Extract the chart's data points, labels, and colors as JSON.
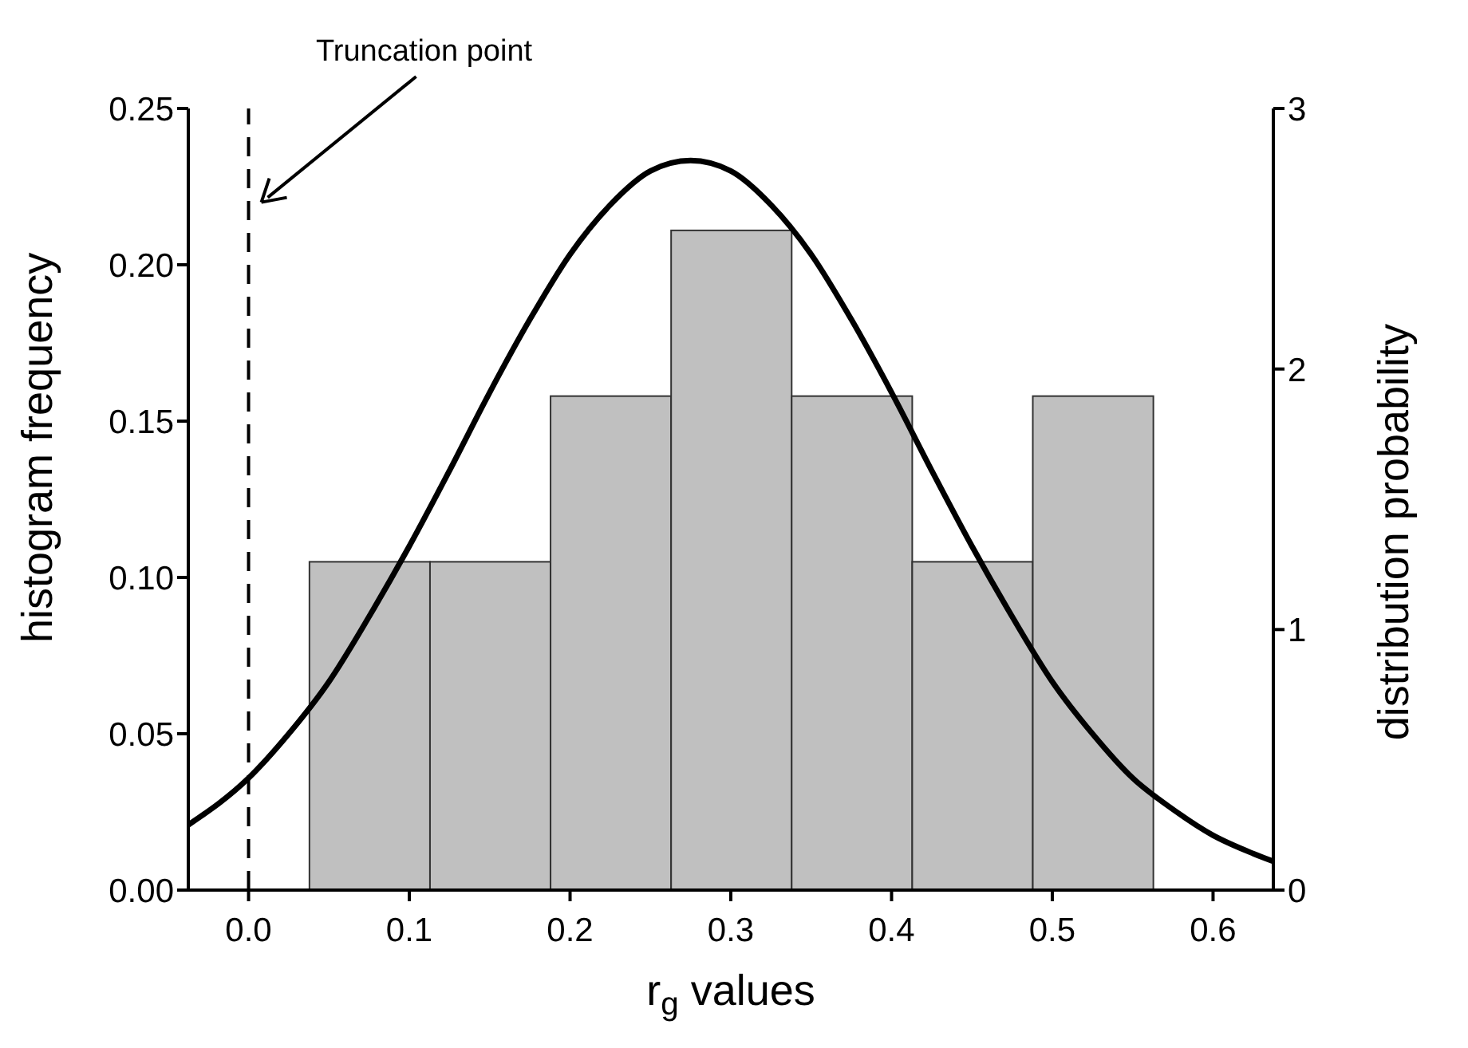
{
  "chart_data": {
    "type": "histogram",
    "xlabel": "r$_{g}$ values",
    "ylabel": "histogram frequency",
    "y2label": "distribution probability",
    "series": [
      {
        "color": "#c0c0c0",
        "bins": [
          0.0375,
          0.1125,
          0.1875,
          0.2625,
          0.3375,
          0.4125,
          0.4875,
          0.5625
        ],
        "values": [
          0.105,
          0.105,
          0.158,
          0.211,
          0.158,
          0.105,
          0.158
        ]
      },
      {
        "type": "line",
        "axis": "y2",
        "color": "#000000",
        "line_style": "solid",
        "marker": "none",
        "x": [
          -0.0375,
          0.0,
          0.025,
          0.05,
          0.075,
          0.1,
          0.125,
          0.15,
          0.175,
          0.2,
          0.225,
          0.25,
          0.275,
          0.3,
          0.325,
          0.35,
          0.375,
          0.4,
          0.425,
          0.45,
          0.475,
          0.5,
          0.525,
          0.55,
          0.575,
          0.6,
          0.625,
          0.6375
        ],
        "values": [
          0.25,
          0.43,
          0.6,
          0.8,
          1.05,
          1.32,
          1.61,
          1.91,
          2.19,
          2.44,
          2.63,
          2.76,
          2.8,
          2.76,
          2.63,
          2.44,
          2.19,
          1.91,
          1.61,
          1.32,
          1.05,
          0.8,
          0.6,
          0.43,
          0.31,
          0.21,
          0.14,
          0.11
        ]
      }
    ],
    "xlim": [
      -0.0375,
      0.6375
    ],
    "xticks": [
      {
        "value": 0,
        "label": "0.0"
      },
      0.1,
      0.2,
      0.3,
      0.4,
      0.5,
      0.6
    ],
    "ylim": [
      0,
      0.25
    ],
    "yticks": [
      {
        "value": 0,
        "label": "0.00"
      },
      0.05,
      {
        "value": 0.1,
        "label": "0.10"
      },
      0.15,
      {
        "value": 0.2,
        "label": "0.20"
      },
      0.25
    ],
    "y2lim": [
      0,
      3
    ],
    "y2ticks": [
      0,
      1,
      2,
      3
    ],
    "ref_lines": [
      {
        "axis": "x",
        "value": 0,
        "color": "#000000",
        "line_style": "dashed"
      }
    ],
    "annotations": [
      "Truncation point"
    ]
  }
}
